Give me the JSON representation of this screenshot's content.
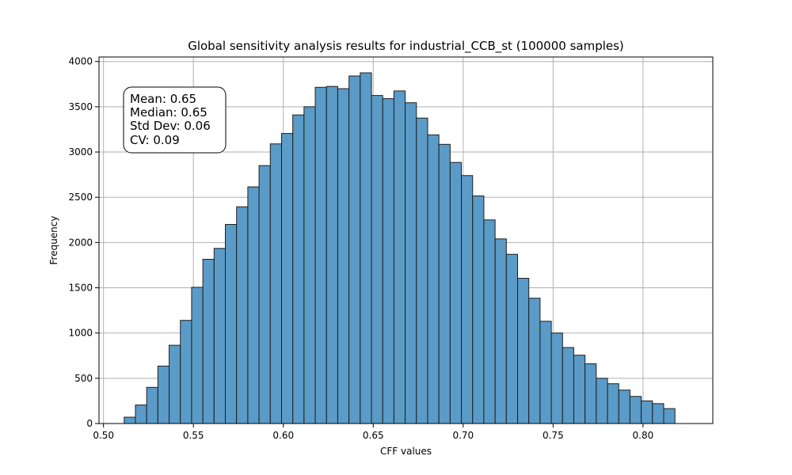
{
  "chart_data": {
    "type": "bar",
    "title": "Global sensitivity analysis results for industrial_CCB_st (100000 samples)",
    "xlabel": "CFF values",
    "ylabel": "Frequency",
    "xlim": [
      0.4975,
      0.8388
    ],
    "ylim": [
      0,
      4050
    ],
    "grid": true,
    "xticks": [
      0.5,
      0.55,
      0.6,
      0.65,
      0.7,
      0.75,
      0.8
    ],
    "xtick_labels": [
      "0.50",
      "0.55",
      "0.60",
      "0.65",
      "0.70",
      "0.75",
      "0.80"
    ],
    "yticks": [
      0,
      500,
      1000,
      1500,
      2000,
      2500,
      3000,
      3500,
      4000
    ],
    "ytick_labels": [
      "0",
      "500",
      "1000",
      "1500",
      "2000",
      "2500",
      "3000",
      "3500",
      "4000"
    ],
    "bin_start": 0.5115,
    "bin_width": 0.00625,
    "values": [
      70,
      205,
      400,
      635,
      865,
      1140,
      1505,
      1815,
      1935,
      2200,
      2395,
      2615,
      2850,
      3090,
      3205,
      3410,
      3500,
      3715,
      3725,
      3700,
      3840,
      3875,
      3625,
      3590,
      3675,
      3545,
      3375,
      3190,
      3085,
      2885,
      2740,
      2515,
      2250,
      2040,
      1870,
      1605,
      1385,
      1130,
      1000,
      840,
      755,
      660,
      500,
      440,
      370,
      300,
      250,
      220,
      165
    ],
    "stats_box": {
      "position": "top-left",
      "lines": [
        "Mean: 0.65",
        "Median: 0.65",
        "Std Dev: 0.06",
        "CV: 0.09"
      ]
    }
  }
}
